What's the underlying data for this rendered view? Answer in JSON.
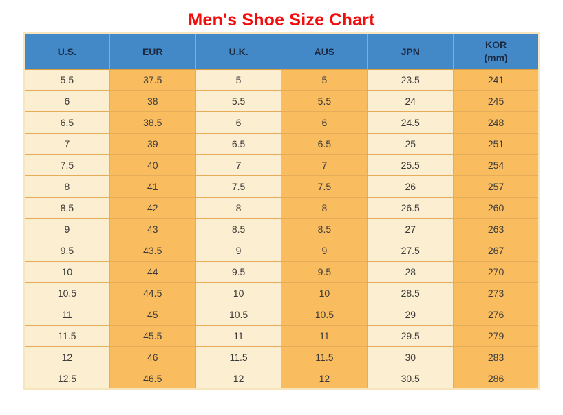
{
  "title": "Men's Shoe Size Chart",
  "colors": {
    "title_red": "#f20d0d",
    "header_bg": "#4389c8",
    "header_text": "#1b2940",
    "cell_light_bg": "#fceed0",
    "cell_orange_bg": "#f9bd60",
    "grid_border": "#e5ad59",
    "header_border": "#d99e3d",
    "outer_border": "#f7e5bd",
    "cell_text": "#3a3a3a"
  },
  "chart_data": {
    "type": "table",
    "title": "Men's Shoe Size Chart",
    "columns": [
      {
        "id": "us",
        "label": "U.S."
      },
      {
        "id": "eur",
        "label": "EUR"
      },
      {
        "id": "uk",
        "label": "U.K."
      },
      {
        "id": "aus",
        "label": "AUS"
      },
      {
        "id": "jpn",
        "label": "JPN"
      },
      {
        "id": "kor",
        "label": "KOR",
        "sublabel": "(mm)"
      }
    ],
    "rows": [
      [
        "5.5",
        "37.5",
        "5",
        "5",
        "23.5",
        "241"
      ],
      [
        "6",
        "38",
        "5.5",
        "5.5",
        "24",
        "245"
      ],
      [
        "6.5",
        "38.5",
        "6",
        "6",
        "24.5",
        "248"
      ],
      [
        "7",
        "39",
        "6.5",
        "6.5",
        "25",
        "251"
      ],
      [
        "7.5",
        "40",
        "7",
        "7",
        "25.5",
        "254"
      ],
      [
        "8",
        "41",
        "7.5",
        "7.5",
        "26",
        "257"
      ],
      [
        "8.5",
        "42",
        "8",
        "8",
        "26.5",
        "260"
      ],
      [
        "9",
        "43",
        "8.5",
        "8.5",
        "27",
        "263"
      ],
      [
        "9.5",
        "43.5",
        "9",
        "9",
        "27.5",
        "267"
      ],
      [
        "10",
        "44",
        "9.5",
        "9.5",
        "28",
        "270"
      ],
      [
        "10.5",
        "44.5",
        "10",
        "10",
        "28.5",
        "273"
      ],
      [
        "11",
        "45",
        "10.5",
        "10.5",
        "29",
        "276"
      ],
      [
        "11.5",
        "45.5",
        "11",
        "11",
        "29.5",
        "279"
      ],
      [
        "12",
        "46",
        "11.5",
        "11.5",
        "30",
        "283"
      ],
      [
        "12.5",
        "46.5",
        "12",
        "12",
        "30.5",
        "286"
      ]
    ],
    "layout": {
      "legend": "none",
      "grid": "on",
      "column_color_pattern": [
        "light",
        "orange",
        "light",
        "orange",
        "light",
        "orange"
      ]
    }
  }
}
